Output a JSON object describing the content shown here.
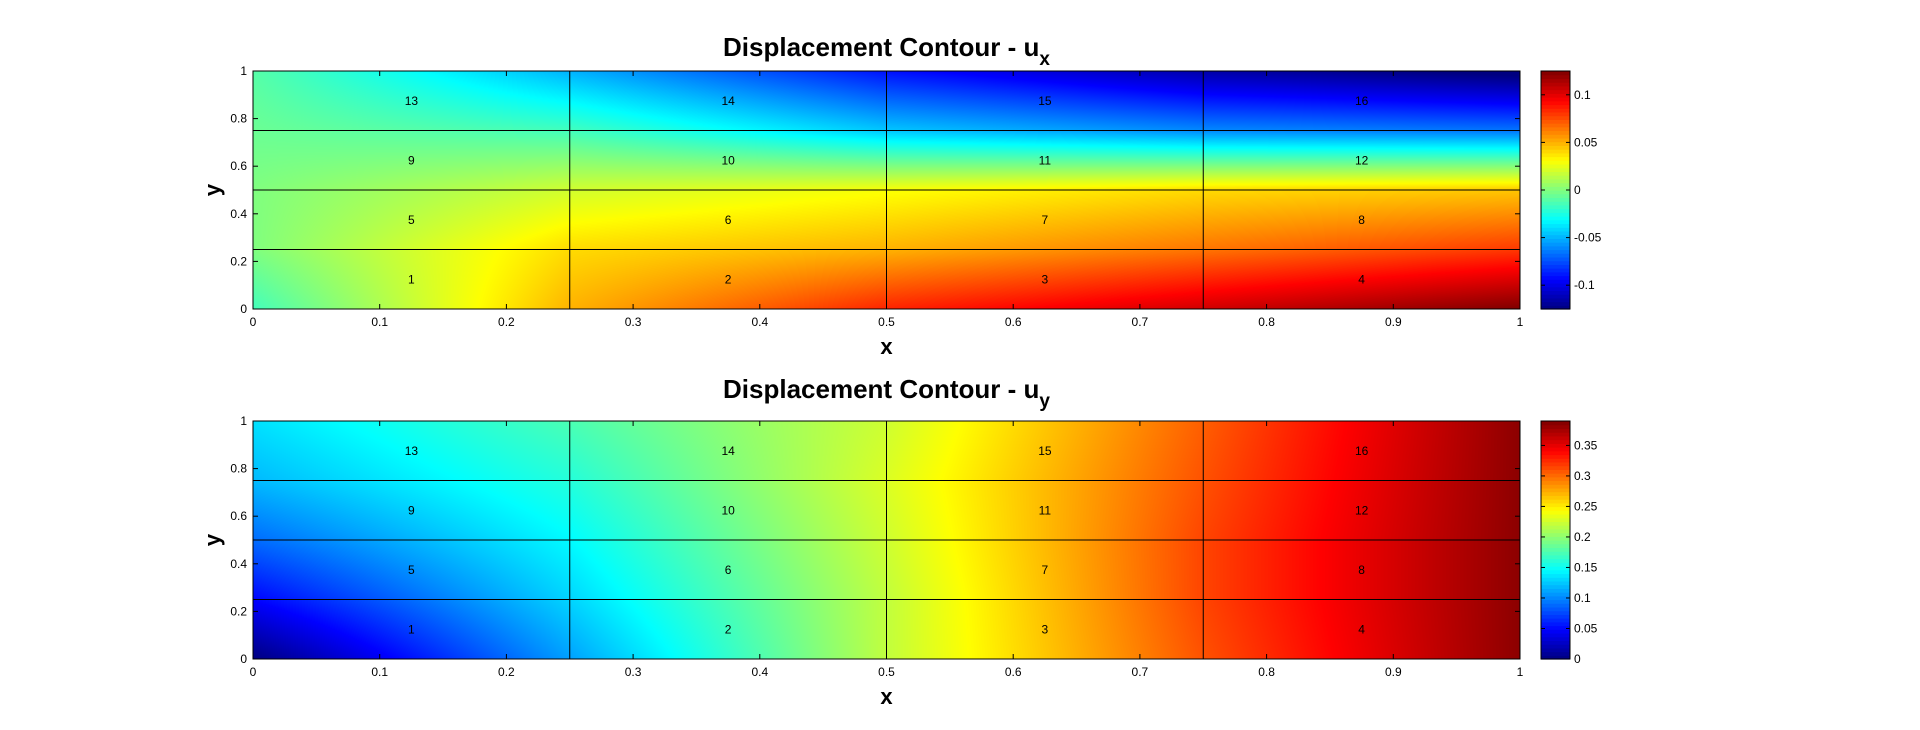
{
  "chart_data": [
    {
      "type": "heatmap",
      "title_main": "Displacement Contour - u",
      "title_sub": "x",
      "xlabel": "x",
      "ylabel": "y",
      "xlim": [
        0,
        1
      ],
      "ylim": [
        0,
        1
      ],
      "x_ticks": [
        "0",
        "0.1",
        "0.2",
        "0.3",
        "0.4",
        "0.5",
        "0.6",
        "0.7",
        "0.8",
        "0.9",
        "1"
      ],
      "y_ticks": [
        "0",
        "0.2",
        "0.4",
        "0.6",
        "0.8",
        "1"
      ],
      "mesh": {
        "nx": 4,
        "ny": 4
      },
      "element_labels": [
        {
          "label": "1",
          "x": 0.125,
          "y": 0.125
        },
        {
          "label": "2",
          "x": 0.375,
          "y": 0.125
        },
        {
          "label": "3",
          "x": 0.625,
          "y": 0.125
        },
        {
          "label": "4",
          "x": 0.875,
          "y": 0.125
        },
        {
          "label": "5",
          "x": 0.125,
          "y": 0.375
        },
        {
          "label": "6",
          "x": 0.375,
          "y": 0.375
        },
        {
          "label": "7",
          "x": 0.625,
          "y": 0.375
        },
        {
          "label": "8",
          "x": 0.875,
          "y": 0.375
        },
        {
          "label": "9",
          "x": 0.125,
          "y": 0.625
        },
        {
          "label": "10",
          "x": 0.375,
          "y": 0.625
        },
        {
          "label": "11",
          "x": 0.625,
          "y": 0.625
        },
        {
          "label": "12",
          "x": 0.875,
          "y": 0.625
        },
        {
          "label": "13",
          "x": 0.125,
          "y": 0.875
        },
        {
          "label": "14",
          "x": 0.375,
          "y": 0.875
        },
        {
          "label": "15",
          "x": 0.625,
          "y": 0.875
        },
        {
          "label": "16",
          "x": 0.875,
          "y": 0.875
        }
      ],
      "nodal_values": {
        "x": [
          0,
          0.25,
          0.5,
          0.75,
          1
        ],
        "y": [
          0,
          0.25,
          0.5,
          0.75,
          1
        ],
        "values": [
          [
            -0.015,
            0.05,
            0.085,
            0.105,
            0.125
          ],
          [
            0.0,
            0.04,
            0.05,
            0.065,
            0.08
          ],
          [
            0.0,
            0.02,
            0.03,
            0.04,
            0.045
          ],
          [
            -0.005,
            -0.015,
            -0.045,
            -0.06,
            -0.065
          ],
          [
            -0.01,
            -0.05,
            -0.09,
            -0.115,
            -0.13
          ]
        ]
      },
      "colorbar": {
        "range": [
          -0.125,
          0.125
        ],
        "tick_values": [
          -0.1,
          -0.05,
          0,
          0.05,
          0.1
        ],
        "tick_labels": [
          "-0.1",
          "-0.05",
          "0",
          "0.05",
          "0.1"
        ],
        "colormap": "jet"
      }
    },
    {
      "type": "heatmap",
      "title_main": "Displacement Contour - u",
      "title_sub": "y",
      "xlabel": "x",
      "ylabel": "y",
      "xlim": [
        0,
        1
      ],
      "ylim": [
        0,
        1
      ],
      "x_ticks": [
        "0",
        "0.1",
        "0.2",
        "0.3",
        "0.4",
        "0.5",
        "0.6",
        "0.7",
        "0.8",
        "0.9",
        "1"
      ],
      "y_ticks": [
        "0",
        "0.2",
        "0.4",
        "0.6",
        "0.8",
        "1"
      ],
      "mesh": {
        "nx": 4,
        "ny": 4
      },
      "element_labels": [
        {
          "label": "1",
          "x": 0.125,
          "y": 0.125
        },
        {
          "label": "2",
          "x": 0.375,
          "y": 0.125
        },
        {
          "label": "3",
          "x": 0.625,
          "y": 0.125
        },
        {
          "label": "4",
          "x": 0.875,
          "y": 0.125
        },
        {
          "label": "5",
          "x": 0.125,
          "y": 0.375
        },
        {
          "label": "6",
          "x": 0.375,
          "y": 0.375
        },
        {
          "label": "7",
          "x": 0.625,
          "y": 0.375
        },
        {
          "label": "8",
          "x": 0.875,
          "y": 0.375
        },
        {
          "label": "9",
          "x": 0.125,
          "y": 0.625
        },
        {
          "label": "10",
          "x": 0.375,
          "y": 0.625
        },
        {
          "label": "11",
          "x": 0.625,
          "y": 0.625
        },
        {
          "label": "12",
          "x": 0.875,
          "y": 0.625
        },
        {
          "label": "13",
          "x": 0.125,
          "y": 0.875
        },
        {
          "label": "14",
          "x": 0.375,
          "y": 0.875
        },
        {
          "label": "15",
          "x": 0.625,
          "y": 0.875
        },
        {
          "label": "16",
          "x": 0.875,
          "y": 0.875
        }
      ],
      "nodal_values": {
        "x": [
          0,
          0.25,
          0.5,
          0.75,
          1
        ],
        "y": [
          0,
          0.25,
          0.5,
          0.75,
          1
        ],
        "values": [
          [
            0.0,
            0.11,
            0.22,
            0.31,
            0.385
          ],
          [
            0.05,
            0.13,
            0.22,
            0.315,
            0.385
          ],
          [
            0.09,
            0.145,
            0.225,
            0.315,
            0.385
          ],
          [
            0.12,
            0.16,
            0.23,
            0.31,
            0.385
          ],
          [
            0.135,
            0.175,
            0.225,
            0.305,
            0.385
          ]
        ]
      },
      "colorbar": {
        "range": [
          0,
          0.39
        ],
        "tick_values": [
          0,
          0.05,
          0.1,
          0.15,
          0.2,
          0.25,
          0.3,
          0.35
        ],
        "tick_labels": [
          "0",
          "0.05",
          "0.1",
          "0.15",
          "0.2",
          "0.25",
          "0.3",
          "0.35"
        ],
        "colormap": "jet"
      }
    }
  ]
}
